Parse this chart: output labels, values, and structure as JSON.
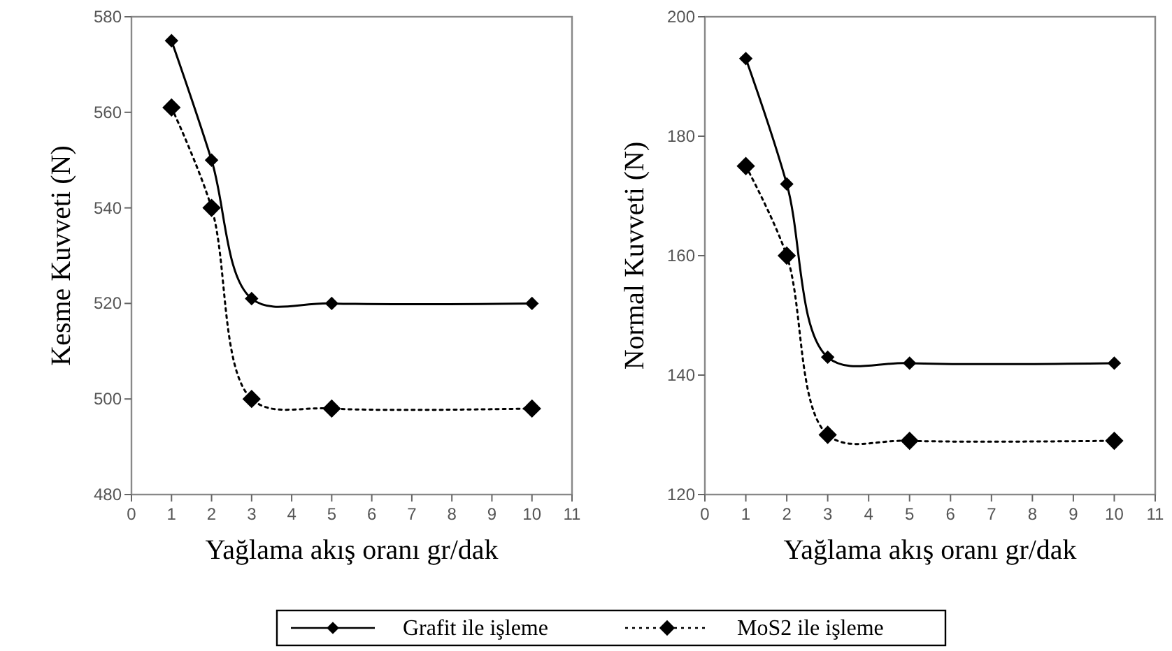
{
  "chart_data": [
    {
      "type": "line",
      "xlabel": "Yağlama akış oranı gr/dak",
      "ylabel": "Kesme Kuvveti (N)",
      "x": [
        1,
        2,
        3,
        5,
        10
      ],
      "xlim": [
        0,
        11
      ],
      "xticks": [
        0,
        1,
        2,
        3,
        4,
        5,
        6,
        7,
        8,
        9,
        10,
        11
      ],
      "ylim": [
        480,
        580
      ],
      "yticks": [
        480,
        500,
        520,
        540,
        560,
        580
      ],
      "marker": "diamond",
      "legend": "bottom",
      "grid": false,
      "series": [
        {
          "name": "Grafit ile işleme",
          "color": "#000000",
          "line_style": "solid",
          "values": [
            575,
            550,
            521,
            520,
            520
          ]
        },
        {
          "name": "MoS2 ile işleme",
          "color": "#000000",
          "line_style": "dotted",
          "values": [
            561,
            540,
            500,
            498,
            498
          ]
        }
      ]
    },
    {
      "type": "line",
      "xlabel": "Yağlama akış oranı gr/dak",
      "ylabel": "Normal Kuvveti (N)",
      "x": [
        1,
        2,
        3,
        5,
        10
      ],
      "xlim": [
        0,
        11
      ],
      "xticks": [
        0,
        1,
        2,
        3,
        4,
        5,
        6,
        7,
        8,
        9,
        10,
        11
      ],
      "ylim": [
        120,
        200
      ],
      "yticks": [
        120,
        140,
        160,
        180,
        200
      ],
      "marker": "diamond",
      "legend": "bottom",
      "grid": false,
      "series": [
        {
          "name": "Grafit ile işleme",
          "color": "#000000",
          "line_style": "solid",
          "values": [
            193,
            172,
            143,
            142,
            142
          ]
        },
        {
          "name": "MoS2 ile işleme",
          "color": "#000000",
          "line_style": "dotted",
          "values": [
            175,
            160,
            130,
            129,
            129
          ]
        }
      ]
    }
  ]
}
